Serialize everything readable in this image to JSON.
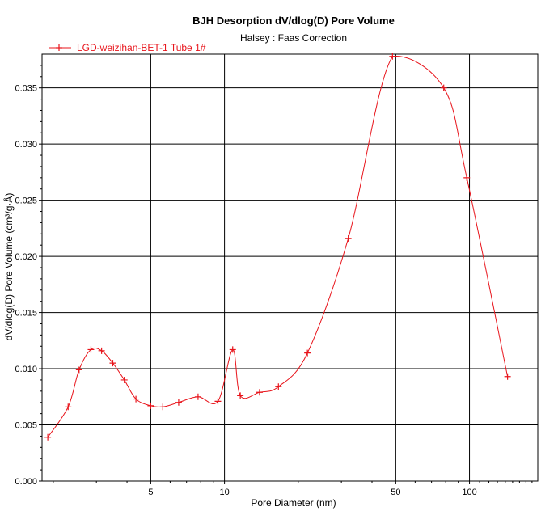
{
  "chart_data": {
    "type": "line",
    "title": "BJH Desorption dV/dlog(D) Pore Volume",
    "subtitle": "Halsey : Faas Correction",
    "xlabel": "Pore Diameter (nm)",
    "ylabel": "dV/dlog(D) Pore Volume (cm³/g·Å)",
    "x_scale": "log",
    "xlim": [
      1.8,
      190
    ],
    "ylim": [
      0,
      0.038
    ],
    "x_ticks": [
      5,
      10,
      50,
      100
    ],
    "x_tick_labels": [
      "5",
      "10",
      "50",
      "100"
    ],
    "y_ticks": [
      0,
      0.005,
      0.01,
      0.015,
      0.02,
      0.025,
      0.03,
      0.035
    ],
    "y_tick_labels": [
      "0.000",
      "0.005",
      "0.010",
      "0.015",
      "0.020",
      "0.025",
      "0.030",
      "0.035"
    ],
    "grid": true,
    "legend_position": "top-left",
    "series": [
      {
        "name": "LGD-weizihan-BET-1  Tube 1#",
        "color": "#e8141b",
        "marker": "plus",
        "x": [
          1.9,
          2.3,
          2.55,
          2.85,
          3.15,
          3.5,
          3.9,
          4.35,
          5.0,
          5.6,
          6.5,
          7.8,
          9.4,
          10.8,
          11.6,
          13.9,
          16.6,
          21.8,
          32.0,
          48.5,
          78.5,
          97.5,
          143
        ],
        "y": [
          0.0039,
          0.0066,
          0.0099,
          0.0117,
          0.0116,
          0.0105,
          0.009,
          0.0073,
          0.0067,
          0.0066,
          0.007,
          0.0075,
          0.0071,
          0.0117,
          0.0076,
          0.0079,
          0.0084,
          0.0114,
          0.0216,
          0.0378,
          0.035,
          0.027,
          0.0093
        ]
      }
    ]
  }
}
